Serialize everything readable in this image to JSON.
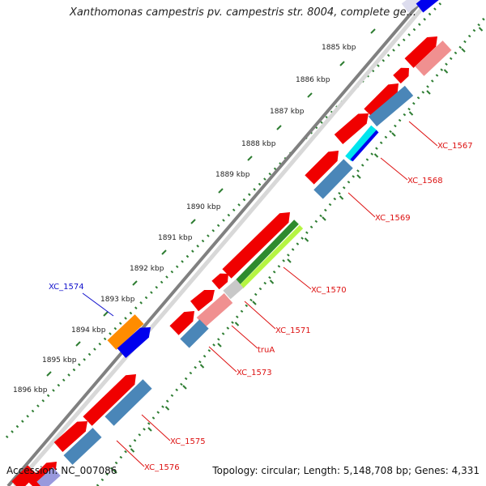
{
  "title": "Xanthomonas campestris pv. campestris str. 8004, complete ge...",
  "footer": {
    "accession": "Accession: NC_007086",
    "topology": "Topology: circular; Length: 5,148,708 bp; Genes: 4,331"
  },
  "ticks": [
    "1885 kbp",
    "1886 kbp",
    "1887 kbp",
    "1888 kbp",
    "1889 kbp",
    "1890 kbp",
    "1891 kbp",
    "1892 kbp",
    "1893 kbp",
    "1894 kbp",
    "1895 kbp",
    "1896 kbp"
  ],
  "gene_labels": [
    {
      "text": "XC_1567",
      "color": "#dd1111"
    },
    {
      "text": "XC_1568",
      "color": "#dd1111"
    },
    {
      "text": "XC_1569",
      "color": "#dd1111"
    },
    {
      "text": "XC_1570",
      "color": "#dd1111"
    },
    {
      "text": "XC_1571",
      "color": "#dd1111"
    },
    {
      "text": "truA",
      "color": "#dd1111"
    },
    {
      "text": "XC_1573",
      "color": "#dd1111"
    },
    {
      "text": "XC_1574",
      "color": "#1111cc"
    },
    {
      "text": "XC_1575",
      "color": "#dd1111"
    },
    {
      "text": "XC_1576",
      "color": "#dd1111"
    }
  ],
  "colors": {
    "cds": "#f00000",
    "cds_light": "#f09090",
    "orf": "#4a86b8",
    "gc": "#2e7d32",
    "backbone": "#808080",
    "rna": "#ff8c00",
    "highlight": "#0000ee",
    "cyan": "#00e5ee",
    "green": "#2e8b2e",
    "lime": "#b5f542",
    "gray": "#c8c8c8"
  }
}
